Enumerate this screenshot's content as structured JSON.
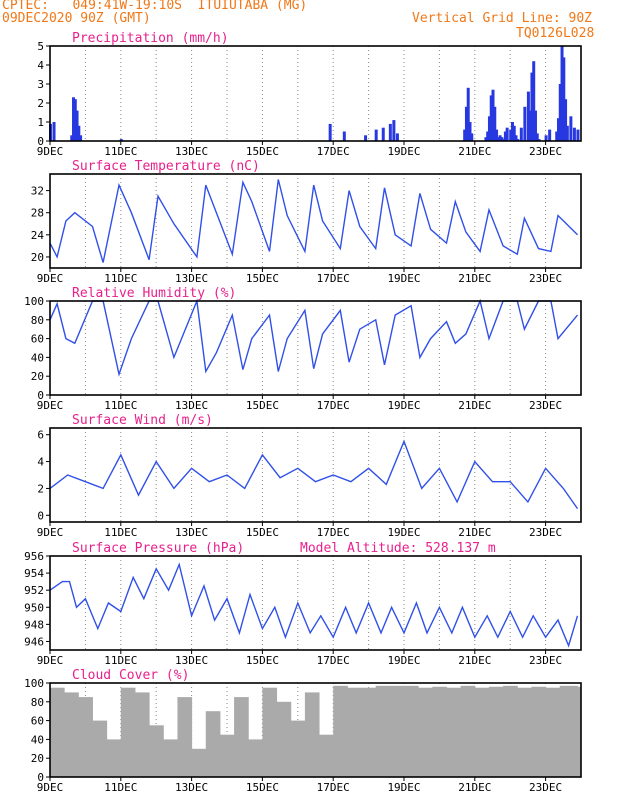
{
  "header": {
    "line1": "CPTEC:   049:41W-19:10S  ITUIUTABA (MG)",
    "line2": "09DEC2020 90Z (GMT)",
    "grid_note": "Vertical Grid Line: 90Z",
    "run_id": "TQ0126L028",
    "text_color": "#f07818"
  },
  "colors": {
    "title": "#e8208c",
    "line": "#3050e8",
    "bar": "#2838e0",
    "cloud": "#aaaaaa",
    "axis": "#000000",
    "grid": "#888888"
  },
  "x_axis": {
    "ticks": [
      "9DEC",
      "11DEC",
      "13DEC",
      "15DEC",
      "17DEC",
      "19DEC",
      "21DEC",
      "23DEC"
    ],
    "tick_days": [
      0,
      2,
      4,
      6,
      8,
      10,
      12,
      14
    ],
    "days_span": 15
  },
  "panels": [
    {
      "id": "precip",
      "title": "Precipitation (mm/h)",
      "yticks": [
        0,
        1,
        2,
        3,
        4,
        5
      ],
      "ylim": [
        0,
        5
      ]
    },
    {
      "id": "temp",
      "title": "Surface Temperature (nC)",
      "yticks": [
        20,
        24,
        28,
        32
      ],
      "ylim": [
        18,
        35
      ]
    },
    {
      "id": "rh",
      "title": "Relative Humidity (%)",
      "yticks": [
        0,
        20,
        40,
        60,
        80,
        100
      ],
      "ylim": [
        0,
        100
      ]
    },
    {
      "id": "wind",
      "title": "Surface Wind (m/s)",
      "yticks": [
        0,
        2,
        4,
        6
      ],
      "ylim": [
        -0.5,
        6.5
      ]
    },
    {
      "id": "pres",
      "title": "Surface Pressure (hPa)",
      "extra": "Model Altitude: 528.137 m",
      "yticks": [
        946,
        948,
        950,
        952,
        954,
        956
      ],
      "ylim": [
        945,
        956
      ]
    },
    {
      "id": "cloud",
      "title": "Cloud Cover (%)",
      "yticks": [
        0,
        20,
        40,
        60,
        80,
        100
      ],
      "ylim": [
        0,
        100
      ]
    }
  ],
  "chart_data": [
    {
      "type": "bar",
      "title": "Precipitation (mm/h)",
      "ylabel": "mm/h",
      "ylim": [
        0,
        5
      ],
      "x_days": [
        0.0,
        0.1,
        0.6,
        0.65,
        0.7,
        0.75,
        0.8,
        0.85,
        2.0,
        7.9,
        8.3,
        8.9,
        9.2,
        9.4,
        9.6,
        9.7,
        9.8,
        11.7,
        11.75,
        11.8,
        11.85,
        11.9,
        12.3,
        12.35,
        12.4,
        12.45,
        12.5,
        12.55,
        12.6,
        12.65,
        12.7,
        12.75,
        12.8,
        12.85,
        12.9,
        13.0,
        13.05,
        13.1,
        13.15,
        13.2,
        13.3,
        13.4,
        13.5,
        13.55,
        13.6,
        13.65,
        13.7,
        13.75,
        13.8,
        14.0,
        14.1,
        14.3,
        14.35,
        14.4,
        14.45,
        14.5,
        14.55,
        14.6,
        14.7,
        14.8,
        14.9
      ],
      "values": [
        0.9,
        1.0,
        0.3,
        2.3,
        2.2,
        1.6,
        0.8,
        0.3,
        0.1,
        0.9,
        0.5,
        0.3,
        0.6,
        0.7,
        0.9,
        1.1,
        0.4,
        0.6,
        1.8,
        2.8,
        1.0,
        0.4,
        0.2,
        0.5,
        1.3,
        2.4,
        2.7,
        1.8,
        0.6,
        0.2,
        0.3,
        0.2,
        0.1,
        0.5,
        0.7,
        0.6,
        1.0,
        0.8,
        0.3,
        0.1,
        0.7,
        1.8,
        2.6,
        1.6,
        3.6,
        4.2,
        1.6,
        0.4,
        0.1,
        0.3,
        0.6,
        0.5,
        1.2,
        3.0,
        5.0,
        4.4,
        2.2,
        0.8,
        1.3,
        0.7,
        0.6
      ]
    },
    {
      "type": "line",
      "title": "Surface Temperature (nC)",
      "ylabel": "nC",
      "ylim": [
        18,
        35
      ],
      "x_days": [
        0.0,
        0.2,
        0.45,
        0.7,
        1.2,
        1.5,
        1.95,
        2.3,
        2.8,
        3.05,
        3.5,
        4.15,
        4.4,
        4.7,
        5.15,
        5.45,
        5.7,
        6.2,
        6.45,
        6.7,
        7.2,
        7.45,
        7.7,
        8.2,
        8.45,
        8.75,
        9.2,
        9.45,
        9.75,
        10.2,
        10.45,
        10.75,
        11.2,
        11.45,
        11.75,
        12.15,
        12.4,
        12.8,
        13.2,
        13.4,
        13.8,
        14.15,
        14.35,
        14.9
      ],
      "values": [
        22.5,
        20.0,
        26.5,
        28.0,
        25.5,
        19.0,
        33.0,
        28.0,
        19.5,
        31.0,
        26.0,
        20.0,
        33.0,
        28.0,
        20.5,
        33.5,
        30.0,
        21.0,
        34.0,
        27.5,
        21.0,
        33.0,
        26.5,
        21.5,
        32.0,
        25.5,
        21.5,
        32.5,
        24.0,
        22.0,
        31.5,
        25.0,
        22.5,
        30.0,
        24.5,
        21.0,
        28.5,
        22.0,
        20.5,
        27.0,
        21.5,
        21.0,
        27.5,
        24.0
      ]
    },
    {
      "type": "line",
      "title": "Relative Humidity (%)",
      "ylabel": "%",
      "ylim": [
        0,
        100
      ],
      "x_days": [
        0.0,
        0.2,
        0.45,
        0.7,
        1.2,
        1.5,
        1.95,
        2.3,
        2.8,
        3.05,
        3.5,
        4.15,
        4.4,
        4.7,
        5.15,
        5.45,
        5.7,
        6.2,
        6.45,
        6.7,
        7.2,
        7.45,
        7.7,
        8.2,
        8.45,
        8.75,
        9.2,
        9.45,
        9.75,
        10.2,
        10.45,
        10.75,
        11.2,
        11.45,
        11.75,
        12.15,
        12.4,
        12.8,
        13.2,
        13.4,
        13.8,
        14.15,
        14.35,
        14.9
      ],
      "values": [
        80,
        97,
        60,
        55,
        100,
        100,
        22,
        60,
        100,
        100,
        40,
        100,
        25,
        45,
        85,
        27,
        60,
        85,
        25,
        60,
        90,
        28,
        65,
        90,
        35,
        70,
        80,
        32,
        85,
        95,
        40,
        60,
        78,
        55,
        65,
        100,
        60,
        100,
        100,
        70,
        100,
        100,
        60,
        85
      ]
    },
    {
      "type": "line",
      "title": "Surface Wind (m/s)",
      "ylabel": "m/s",
      "ylim": [
        -0.5,
        6.5
      ],
      "x_days": [
        0.0,
        0.5,
        1.0,
        1.5,
        2.0,
        2.5,
        3.0,
        3.5,
        4.0,
        4.5,
        5.0,
        5.5,
        6.0,
        6.5,
        7.0,
        7.5,
        8.0,
        8.5,
        9.0,
        9.5,
        10.0,
        10.5,
        11.0,
        11.5,
        12.0,
        12.5,
        13.0,
        13.5,
        14.0,
        14.5,
        14.9
      ],
      "values": [
        2.0,
        3.0,
        2.5,
        2.0,
        4.5,
        1.5,
        4.0,
        2.0,
        3.5,
        2.5,
        3.0,
        2.0,
        4.5,
        2.8,
        3.5,
        2.5,
        3.0,
        2.5,
        3.5,
        2.3,
        5.5,
        2.0,
        3.5,
        1.0,
        4.0,
        2.5,
        2.5,
        1.0,
        3.5,
        2.0,
        0.5
      ]
    },
    {
      "type": "line",
      "title": "Surface Pressure (hPa)",
      "ylabel": "hPa",
      "ylim": [
        945,
        956
      ],
      "x_days": [
        0.0,
        0.35,
        0.55,
        0.75,
        1.0,
        1.35,
        1.65,
        2.0,
        2.35,
        2.65,
        3.0,
        3.35,
        3.65,
        4.0,
        4.35,
        4.65,
        5.0,
        5.35,
        5.65,
        6.0,
        6.35,
        6.65,
        7.0,
        7.35,
        7.65,
        8.0,
        8.35,
        8.65,
        9.0,
        9.35,
        9.65,
        10.0,
        10.35,
        10.65,
        11.0,
        11.35,
        11.65,
        12.0,
        12.35,
        12.65,
        13.0,
        13.35,
        13.65,
        14.0,
        14.35,
        14.65,
        14.9
      ],
      "values": [
        952.0,
        953.0,
        953.0,
        950.0,
        951.0,
        947.5,
        950.5,
        949.5,
        953.5,
        951.0,
        954.5,
        952.0,
        955.0,
        949.0,
        952.5,
        948.5,
        951.0,
        947.0,
        951.5,
        947.5,
        950.0,
        946.5,
        950.5,
        947.0,
        949.0,
        946.5,
        950.0,
        947.0,
        950.5,
        947.0,
        950.0,
        947.0,
        950.5,
        947.0,
        950.0,
        947.0,
        950.0,
        946.5,
        949.0,
        946.5,
        949.5,
        946.5,
        949.0,
        946.5,
        948.5,
        945.5,
        949.0
      ]
    },
    {
      "type": "area",
      "title": "Cloud Cover (%)",
      "ylabel": "%",
      "ylim": [
        0,
        100
      ],
      "x_days": [
        0.0,
        0.4,
        0.8,
        1.2,
        1.6,
        2.0,
        2.4,
        2.8,
        3.2,
        3.6,
        4.0,
        4.4,
        4.8,
        5.2,
        5.6,
        6.0,
        6.4,
        6.8,
        7.2,
        7.6,
        8.0,
        8.4,
        8.8,
        9.2,
        9.6,
        10.0,
        10.4,
        10.8,
        11.2,
        11.6,
        12.0,
        12.4,
        12.8,
        13.2,
        13.6,
        14.0,
        14.4,
        14.9
      ],
      "values": [
        95,
        90,
        85,
        60,
        40,
        95,
        90,
        55,
        40,
        85,
        30,
        70,
        45,
        85,
        40,
        95,
        80,
        60,
        90,
        45,
        97,
        95,
        95,
        97,
        97,
        97,
        95,
        96,
        95,
        97,
        95,
        96,
        97,
        95,
        96,
        95,
        97,
        96
      ]
    }
  ]
}
